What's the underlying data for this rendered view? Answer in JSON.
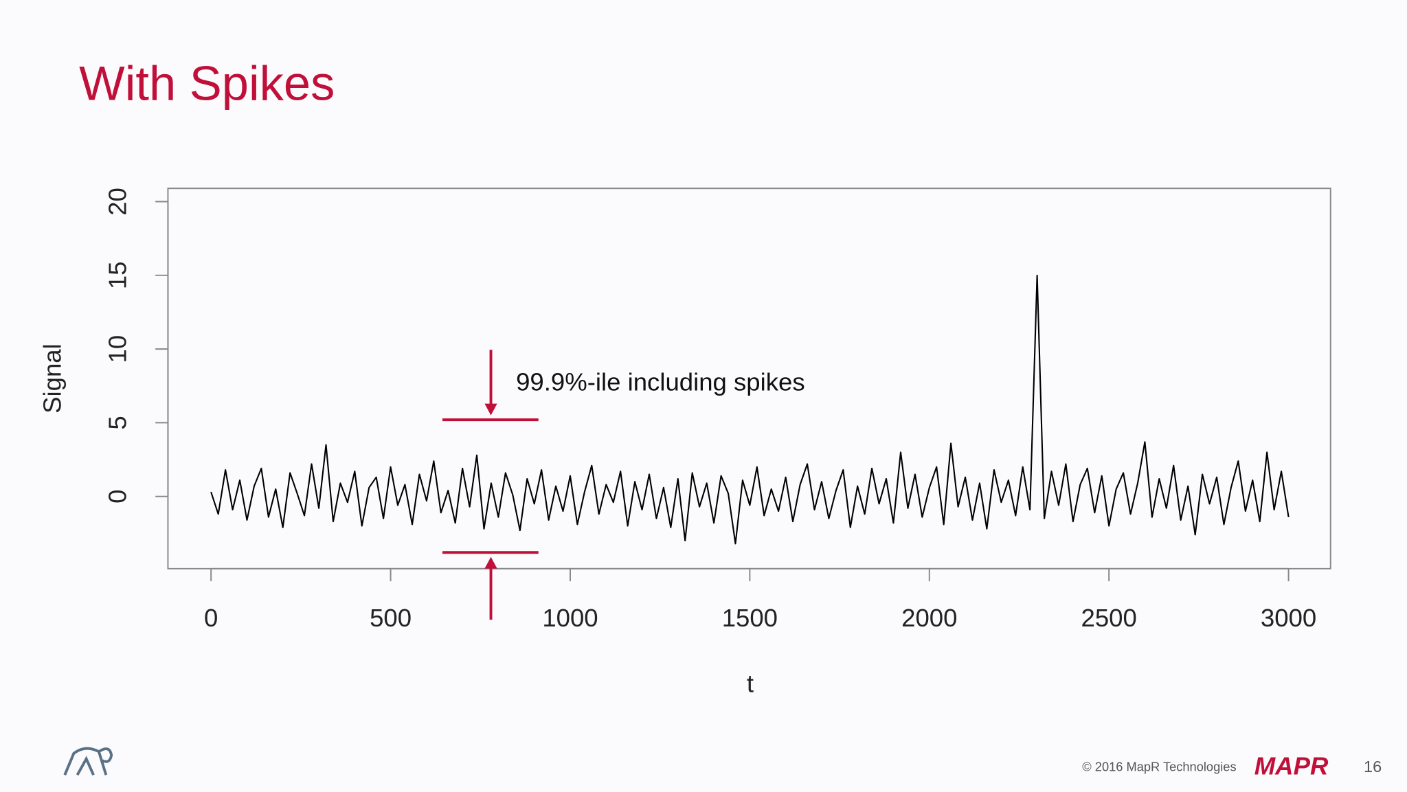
{
  "chart_data": {
    "type": "line",
    "title": "With Spikes",
    "x_label": "t",
    "y_label": "Signal",
    "x": [
      0,
      20,
      40,
      60,
      80,
      100,
      120,
      140,
      160,
      180,
      200,
      220,
      240,
      260,
      280,
      300,
      320,
      340,
      360,
      380,
      400,
      420,
      440,
      460,
      480,
      500,
      520,
      540,
      560,
      580,
      600,
      620,
      640,
      660,
      680,
      700,
      720,
      740,
      760,
      780,
      800,
      820,
      840,
      860,
      880,
      900,
      920,
      940,
      960,
      980,
      1000,
      1020,
      1040,
      1060,
      1080,
      1100,
      1120,
      1140,
      1160,
      1180,
      1200,
      1220,
      1240,
      1260,
      1280,
      1300,
      1320,
      1340,
      1360,
      1380,
      1400,
      1420,
      1440,
      1460,
      1480,
      1500,
      1520,
      1540,
      1560,
      1580,
      1600,
      1620,
      1640,
      1660,
      1680,
      1700,
      1720,
      1740,
      1760,
      1780,
      1800,
      1820,
      1840,
      1860,
      1880,
      1900,
      1920,
      1940,
      1960,
      1980,
      2000,
      2020,
      2040,
      2060,
      2080,
      2100,
      2120,
      2140,
      2160,
      2180,
      2200,
      2220,
      2240,
      2260,
      2280,
      2300,
      2320,
      2340,
      2360,
      2380,
      2400,
      2420,
      2440,
      2460,
      2480,
      2500,
      2520,
      2540,
      2560,
      2580,
      2600,
      2620,
      2640,
      2660,
      2680,
      2700,
      2720,
      2740,
      2760,
      2780,
      2800,
      2820,
      2840,
      2860,
      2880,
      2900,
      2920,
      2940,
      2960,
      2980,
      3000
    ],
    "series": [
      {
        "color": "#000000",
        "values": [
          0.3,
          -1.2,
          1.8,
          -0.9,
          1.1,
          -1.6,
          0.7,
          1.9,
          -1.4,
          0.5,
          -2.1,
          1.6,
          0.2,
          -1.3,
          2.2,
          -0.8,
          3.5,
          -1.7,
          0.9,
          -0.4,
          1.7,
          -2.0,
          0.6,
          1.3,
          -1.5,
          2.0,
          -0.6,
          0.8,
          -1.9,
          1.5,
          -0.3,
          2.4,
          -1.1,
          0.4,
          -1.8,
          1.9,
          -0.7,
          2.8,
          -2.2,
          0.9,
          -1.4,
          1.6,
          0.1,
          -2.3,
          1.2,
          -0.5,
          1.8,
          -1.6,
          0.7,
          -1.0,
          1.4,
          -1.9,
          0.3,
          2.1,
          -1.2,
          0.8,
          -0.4,
          1.7,
          -2.0,
          1.0,
          -0.9,
          1.5,
          -1.5,
          0.6,
          -2.1,
          1.2,
          -3.0,
          1.6,
          -0.7,
          0.9,
          -1.8,
          1.4,
          0.2,
          -3.2,
          1.1,
          -0.6,
          2.0,
          -1.3,
          0.5,
          -1.0,
          1.3,
          -1.7,
          0.8,
          2.2,
          -0.9,
          1.0,
          -1.5,
          0.4,
          1.8,
          -2.1,
          0.7,
          -1.2,
          1.9,
          -0.5,
          1.2,
          -1.8,
          3.0,
          -0.8,
          1.5,
          -1.4,
          0.6,
          2.0,
          -1.9,
          3.6,
          -0.7,
          1.3,
          -1.6,
          0.9,
          -2.2,
          1.8,
          -0.4,
          1.1,
          -1.3,
          2.0,
          -0.9,
          15.0,
          -1.5,
          1.7,
          -0.6,
          2.2,
          -1.7,
          0.8,
          1.9,
          -1.1,
          1.4,
          -2.0,
          0.5,
          1.6,
          -1.2,
          0.9,
          3.7,
          -1.4,
          1.2,
          -0.8,
          2.1,
          -1.6,
          0.7,
          -2.6,
          1.5,
          -0.5,
          1.3,
          -1.9,
          0.6,
          2.4,
          -1.0,
          1.1,
          -1.7,
          3.0,
          -0.9,
          1.7,
          -1.4
        ]
      }
    ],
    "xlim": [
      -120,
      3117
    ],
    "ylim": [
      -4.9,
      20.9
    ],
    "xticks": [
      0,
      500,
      1000,
      1500,
      2000,
      2500,
      3000
    ],
    "yticks": [
      0,
      5,
      10,
      15,
      20
    ],
    "annotation": {
      "text": "99.9%-ile including spikes",
      "upper": 5.2,
      "lower": -3.8,
      "color": "#c0103a"
    }
  },
  "footer": {
    "copyright": "© 2016 MapR Technologies",
    "brand": "MAPR",
    "page": "16"
  }
}
